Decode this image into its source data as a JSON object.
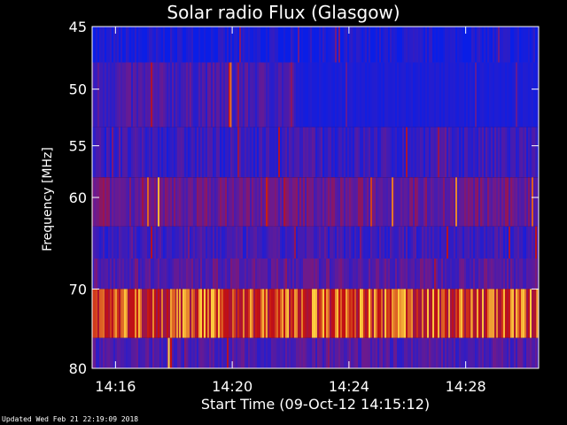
{
  "title": "Solar radio Flux (Glasgow)",
  "footer": "Updated Wed Feb 21 22:19:09 2018",
  "chart_data": {
    "type": "heatmap",
    "title": "Solar radio Flux (Glasgow)",
    "xlabel": "Start Time (09-Oct-12 14:15:12)",
    "ylabel": "Frequency [MHz]",
    "xlim": [
      "14:15:12",
      "14:30:30"
    ],
    "ylim": [
      80,
      45
    ],
    "x_ticks": [
      "14:16",
      "14:20",
      "14:24",
      "14:28"
    ],
    "y_ticks": [
      "45",
      "50",
      "55",
      "60",
      "70",
      "80"
    ],
    "colors": {
      "background": "#000000",
      "low": "#0a1ee6",
      "mid": "#6e1a8c",
      "high": "#c41010",
      "peak": "#ffd040"
    },
    "bands": [
      {
        "f0": 45.0,
        "f1": 47.8,
        "level": 0.05
      },
      {
        "f0": 47.8,
        "f1": 53.3,
        "level": 0.3
      },
      {
        "f0": 53.3,
        "f1": 58.0,
        "level": 0.22
      },
      {
        "f0": 58.0,
        "f1": 63.0,
        "level": 0.45
      },
      {
        "f0": 63.0,
        "f1": 66.5,
        "level": 0.25
      },
      {
        "f0": 66.5,
        "f1": 70.0,
        "level": 0.38
      },
      {
        "f0": 70.0,
        "f1": 76.0,
        "level": 0.82
      },
      {
        "f0": 76.0,
        "f1": 80.0,
        "level": 0.33
      }
    ],
    "bursts": [
      {
        "time": "14:19:55",
        "f0": 47.8,
        "f1": 53.3,
        "level": 0.9
      },
      {
        "time": "14:17:48",
        "f0": 76.0,
        "f1": 80.0,
        "level": 1.0
      },
      {
        "time": "14:18:05",
        "f0": 70.0,
        "f1": 76.0,
        "level": 0.95
      },
      {
        "time": "14:21:50",
        "f0": 70.0,
        "f1": 76.0,
        "level": 0.95
      },
      {
        "time": "14:25:40",
        "f0": 70.0,
        "f1": 76.0,
        "level": 1.0
      },
      {
        "time": "14:28:10",
        "f0": 70.0,
        "f1": 76.0,
        "level": 0.95
      },
      {
        "time": "14:30:25",
        "f0": 70.0,
        "f1": 76.0,
        "level": 0.95
      }
    ]
  }
}
